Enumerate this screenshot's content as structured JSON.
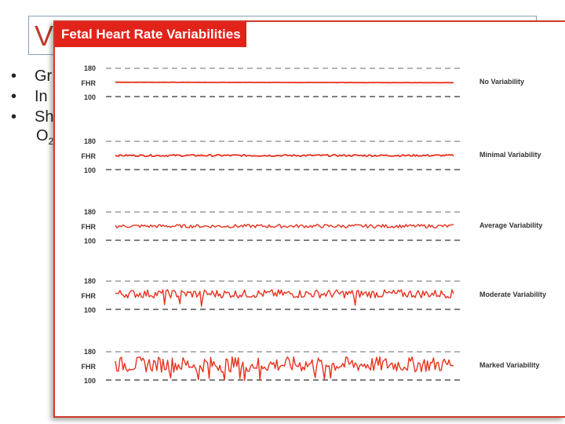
{
  "slide": {
    "title": "V",
    "bullets": [
      {
        "marker": "•",
        "text": "Gr"
      },
      {
        "marker": "•",
        "text": "In"
      },
      {
        "marker": "•",
        "text": "Sh"
      }
    ],
    "sub_line": {
      "text": "O",
      "subscript": "2"
    }
  },
  "figure": {
    "banner_title": "Fetal Heart Rate Variabilities",
    "banner_color": "#e2231a",
    "trace_color": "#e8321f",
    "axis_top": "180",
    "axis_mid": "FHR",
    "axis_bottom": "100"
  },
  "chart_data": {
    "type": "line",
    "ylim": [
      100,
      180
    ],
    "ylabel": "FHR",
    "series": [
      {
        "name": "No Variability",
        "amplitude_bpm": 0.6,
        "spikes": 0
      },
      {
        "name": "Minimal Variability",
        "amplitude_bpm": 2.5,
        "spikes": 0
      },
      {
        "name": "Average Variability",
        "amplitude_bpm": 5,
        "spikes": 0
      },
      {
        "name": "Moderate Variability",
        "amplitude_bpm": 12,
        "spikes": 5
      },
      {
        "name": "Marked Variability",
        "amplitude_bpm": 22,
        "spikes": 10
      }
    ]
  }
}
